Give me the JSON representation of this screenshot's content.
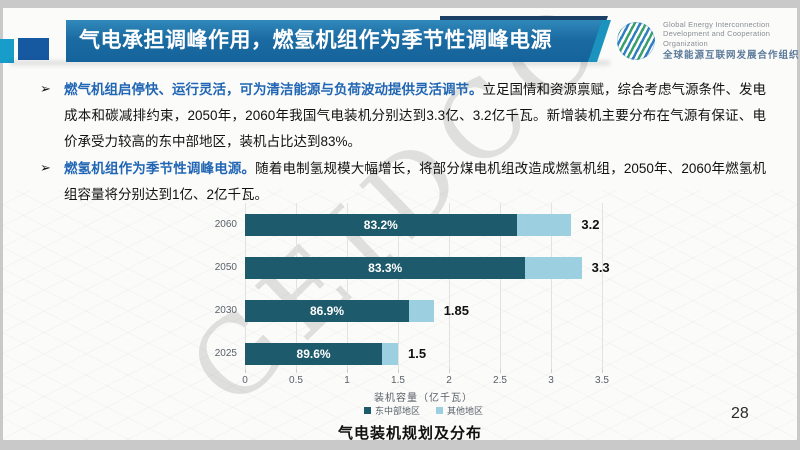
{
  "slide": {
    "title": "气电承担调峰作用，燃氢机组作为季节性调峰电源",
    "page_number": "28",
    "watermark": "GEIDCO"
  },
  "logo": {
    "name_en_line1": "Global Energy Interconnection",
    "name_en_line2": "Development and Cooperation Organization",
    "name_zh": "全球能源互联网发展合作组织"
  },
  "bullets": [
    {
      "marker": "➢",
      "lead": "燃气机组启停快、运行灵活，可为清洁能源与负荷波动提供灵活调节。",
      "body": "立足国情和资源禀赋，综合考虑气源条件、发电成本和碳减排约束，2050年，2060年我国气电装机分别达到3.3亿、3.2亿千瓦。新增装机主要分布在气源有保证、电价承受力较高的东中部地区，装机占比达到83%。"
    },
    {
      "marker": "➢",
      "lead": "燃氢机组作为季节性调峰电源。",
      "body": "随着电制氢规模大幅增长，将部分煤电机组改造成燃氢机组，2050年、2060年燃氢机组容量将分别达到1亿、2亿千瓦。"
    }
  ],
  "chart_data": {
    "type": "bar",
    "orientation": "horizontal",
    "title": "气电装机规划及分布",
    "xlabel": "装机容量（亿千瓦）",
    "categories": [
      "2060",
      "2050",
      "2030",
      "2025"
    ],
    "totals": [
      3.2,
      3.3,
      1.85,
      1.5
    ],
    "east_share_pct": [
      83.2,
      83.3,
      86.9,
      89.6
    ],
    "bar_labels": [
      "83.2%",
      "83.3%",
      "86.9%",
      "89.6%"
    ],
    "total_labels": [
      "3.2",
      "3.3",
      "1.85",
      "1.5"
    ],
    "x_ticks": [
      0,
      0.5,
      1,
      1.5,
      2,
      2.5,
      3,
      3.5
    ],
    "xlim": [
      0,
      3.5
    ],
    "grid": true,
    "legend": [
      "东中部地区",
      "其他地区"
    ],
    "colors": {
      "east": "#1d5a6c",
      "other": "#9ccfe0"
    },
    "legend_position": "bottom"
  }
}
